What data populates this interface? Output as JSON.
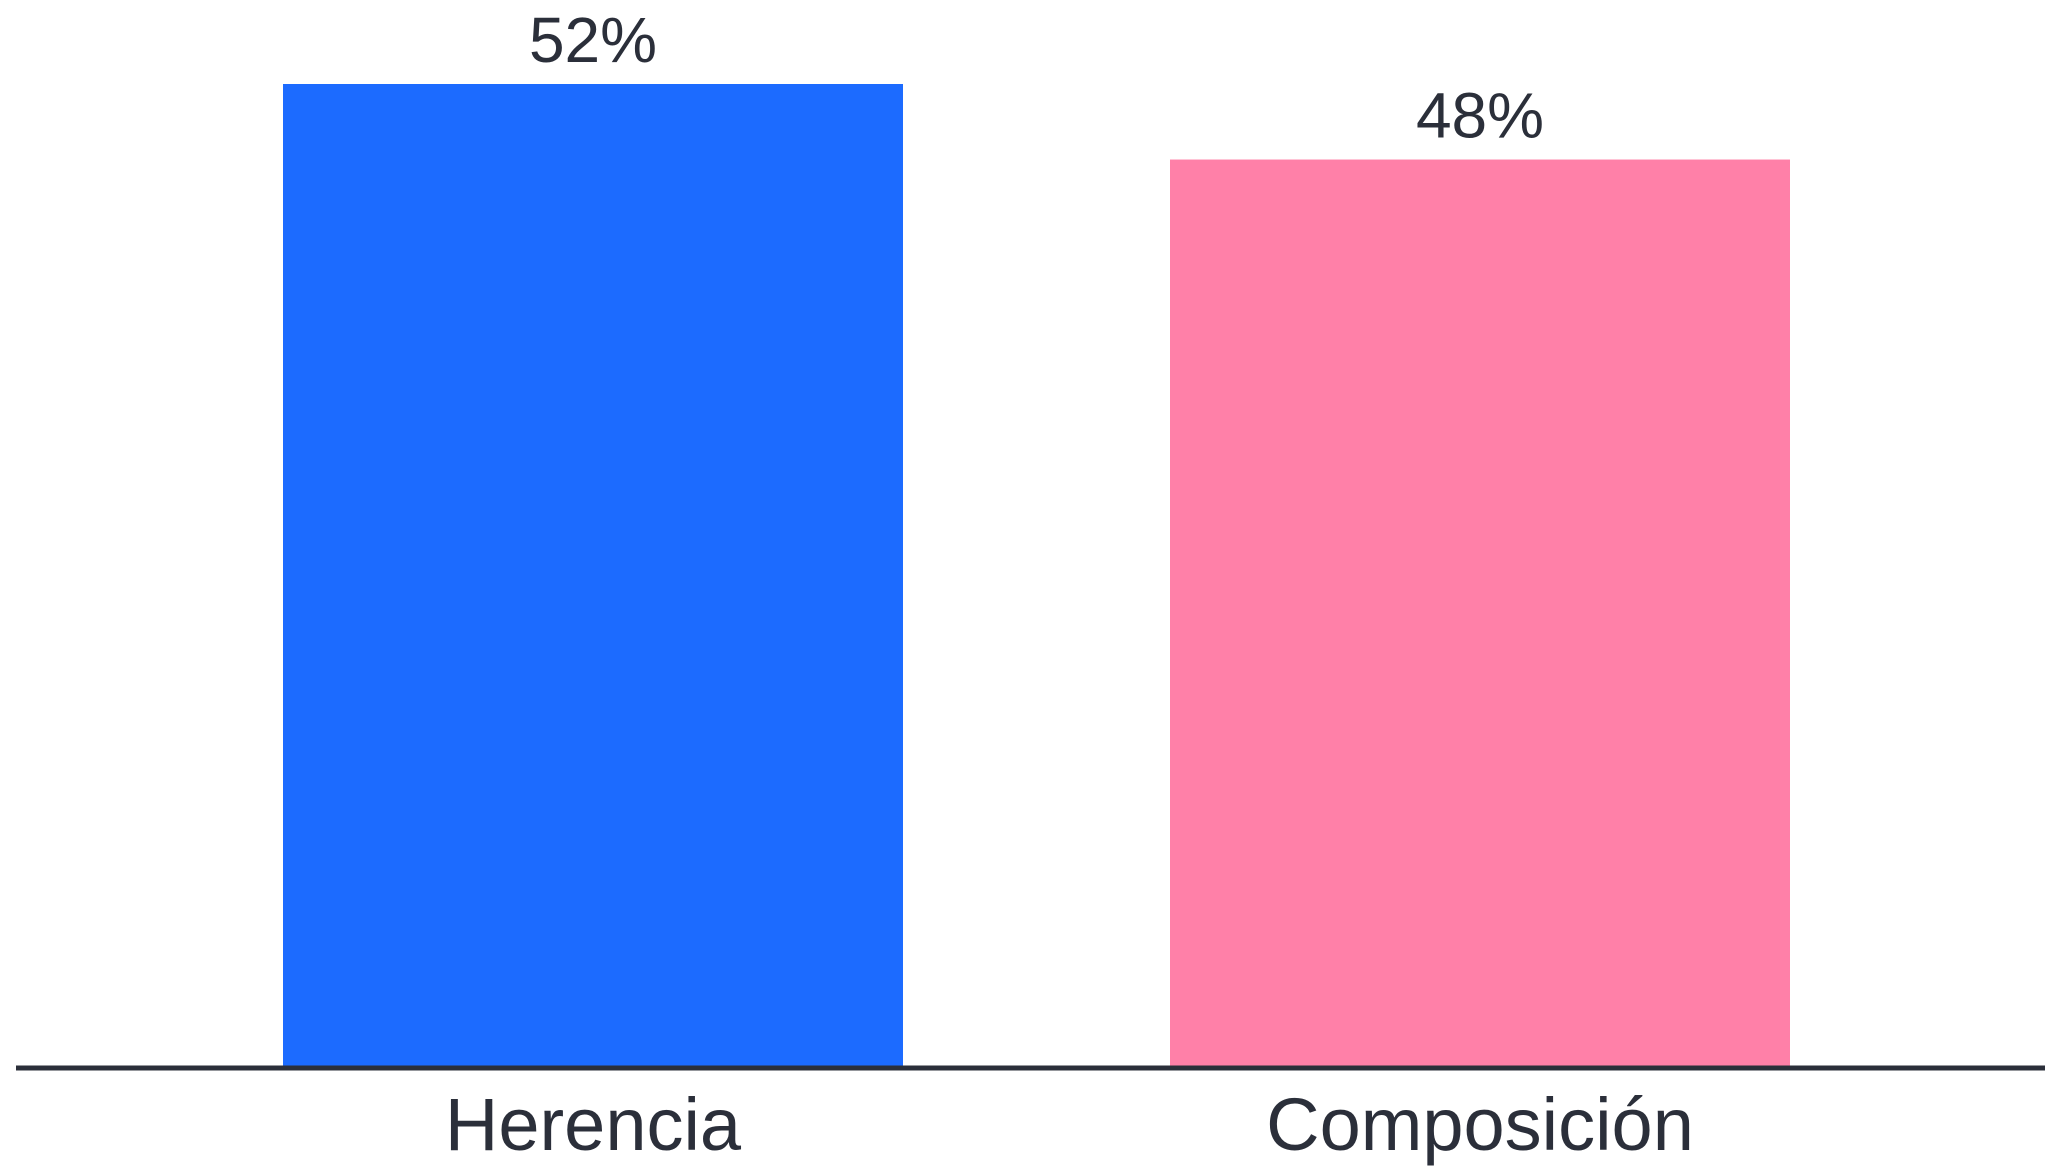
{
  "chart_data": {
    "type": "bar",
    "categories": [
      "Herencia",
      "Composición"
    ],
    "values": [
      52,
      48
    ],
    "value_labels": [
      "52%",
      "48%"
    ],
    "colors": [
      "#1c6bff",
      "#ff80a8"
    ],
    "axis_color": "#2b2f3a",
    "ylim": [
      0,
      52
    ],
    "grid": false,
    "legend": "none"
  }
}
